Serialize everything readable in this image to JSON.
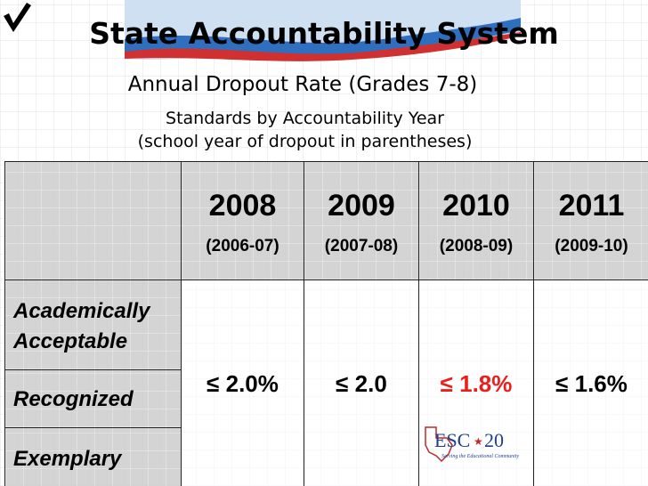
{
  "header": {
    "title": "State Accountability System",
    "subtitle": "Annual Dropout Rate (Grades 7-8)",
    "note_lines": [
      "Standards by Accountability Year",
      "(school year of dropout in parentheses)"
    ]
  },
  "table": {
    "columns": [
      {
        "year": "2008",
        "school_year": "(2006-07)"
      },
      {
        "year": "2009",
        "school_year": "(2007-08)"
      },
      {
        "year": "2010",
        "school_year": "(2008-09)"
      },
      {
        "year": "2011",
        "school_year": "(2009-10)"
      }
    ],
    "rows": [
      "Academically Acceptable",
      "Recognized",
      "Exemplary"
    ],
    "values": [
      "≤ 2.0%",
      "≤ 2.0",
      "≤ 1.8%",
      "≤ 1.6%"
    ]
  },
  "logo": {
    "name": "ESC",
    "number": "20",
    "tagline": "Serving the Educational Community"
  }
}
